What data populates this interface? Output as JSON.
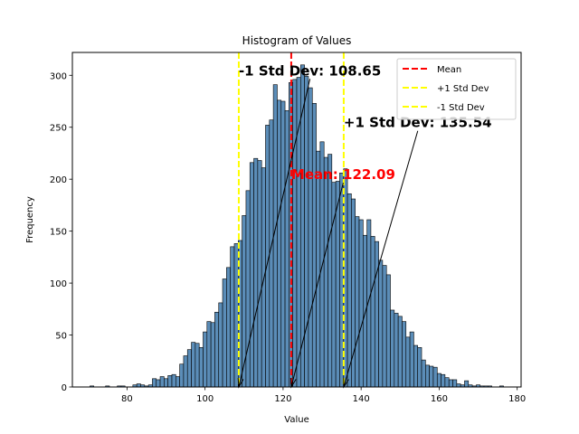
{
  "chart_data": {
    "type": "bar",
    "title": "Histogram of Values",
    "xlabel": "Value",
    "ylabel": "Frequency",
    "xlim": [
      66,
      181
    ],
    "ylim": [
      0,
      322
    ],
    "xticks": [
      80,
      100,
      120,
      140,
      160,
      180
    ],
    "yticks": [
      0,
      50,
      100,
      150,
      200,
      250,
      300
    ],
    "bar_color": "#5b8db8",
    "bar_edge_color": "#000000",
    "bins": {
      "start": 70.5,
      "width": 1,
      "counts": [
        1,
        0,
        0,
        0,
        1,
        0,
        0,
        1,
        1,
        0,
        0,
        2,
        3,
        2,
        1,
        2,
        8,
        7,
        10,
        8,
        11,
        12,
        10,
        22,
        30,
        36,
        43,
        42,
        38,
        53,
        63,
        62,
        72,
        81,
        104,
        115,
        135,
        138,
        141,
        165,
        189,
        216,
        220,
        218,
        211,
        252,
        257,
        291,
        276,
        275,
        266,
        293,
        296,
        298,
        310,
        299,
        288,
        273,
        227,
        236,
        221,
        224,
        197,
        198,
        206,
        210,
        186,
        181,
        164,
        161,
        146,
        161,
        145,
        140,
        122,
        117,
        108,
        74,
        71,
        68,
        63,
        48,
        53,
        40,
        38,
        26,
        21,
        20,
        19,
        13,
        12,
        9,
        7,
        7,
        3,
        2,
        6,
        2,
        1,
        2,
        1,
        1,
        1,
        0,
        0,
        1
      ]
    },
    "lines": [
      {
        "name": "Mean",
        "x": 122.09,
        "color": "#ff0000",
        "label": "Mean: 122.09"
      },
      {
        "name": "+1 Std Dev",
        "x": 135.54,
        "color": "#ffff00",
        "label": "+1 Std Dev: 135.54"
      },
      {
        "name": "-1 Std Dev",
        "x": 108.65,
        "color": "#ffff00",
        "label": "-1 Std Dev: 108.65"
      }
    ],
    "annotations": [
      {
        "text": "-1 Std Dev: 108.65",
        "text_x": 108.65,
        "text_y": 300,
        "point_x": 108.65,
        "point_y": 0,
        "color": "#000000"
      },
      {
        "text": "Mean: 122.09",
        "text_x": 122.09,
        "text_y": 200,
        "point_x": 122.09,
        "point_y": 0,
        "color": "#ff0000"
      },
      {
        "text": "+1 Std Dev: 135.54",
        "text_x": 135.54,
        "text_y": 250,
        "point_x": 135.54,
        "point_y": 0,
        "color": "#000000"
      }
    ],
    "legend": {
      "position": "top-right",
      "entries": [
        "Mean",
        "+1 Std Dev",
        "-1 Std Dev"
      ]
    }
  }
}
